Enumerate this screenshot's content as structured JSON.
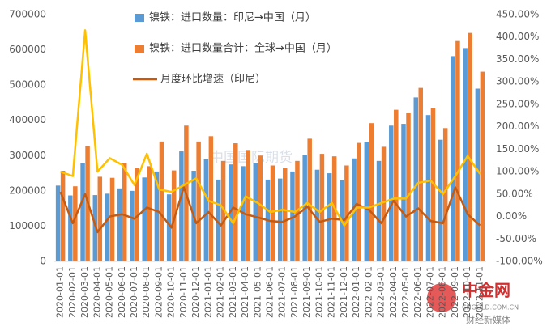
{
  "chart_data": {
    "type": "bar-line",
    "categories": [
      "2020-01-01",
      "2020-02-01",
      "2020-03-01",
      "2020-04-01",
      "2020-05-01",
      "2020-06-01",
      "2020-07-01",
      "2020-08-01",
      "2020-09-01",
      "2020-10-01",
      "2020-11-01",
      "2020-12-01",
      "2021-01-01",
      "2021-02-01",
      "2021-03-01",
      "2021-04-01",
      "2021-05-01",
      "2021-06-01",
      "2021-07-01",
      "2021-08-01",
      "2021-09-01",
      "2021-10-01",
      "2021-11-01",
      "2021-12-01",
      "2022-01-01",
      "2022-02-01",
      "2022-03-01",
      "2022-04-01",
      "2022-05-01",
      "2022-06-01",
      "2022-07-01",
      "2022-08-01",
      "2022-09-01",
      "2022-10-01",
      "2022-11-01"
    ],
    "series": [
      {
        "name": "镍铁：进口数量：印尼→中国（月）",
        "type": "bar",
        "color": "#5b9bd5",
        "values": [
          215000,
          187000,
          280000,
          188000,
          192000,
          207000,
          200000,
          238000,
          255000,
          190000,
          312000,
          257000,
          290000,
          232000,
          275000,
          270000,
          280000,
          232000,
          235000,
          255000,
          302000,
          260000,
          250000,
          230000,
          292000,
          338000,
          285000,
          385000,
          390000,
          465000,
          415000,
          345000,
          582000,
          605000,
          490000
        ]
      },
      {
        "name": "镍铁：进口数量合计：全球→中国（月）",
        "type": "bar",
        "color": "#ed7d31",
        "values": [
          257000,
          213000,
          327000,
          240000,
          237000,
          280000,
          265000,
          270000,
          340000,
          258000,
          385000,
          340000,
          355000,
          285000,
          335000,
          316000,
          300000,
          272000,
          265000,
          285000,
          348000,
          305000,
          298000,
          272000,
          336000,
          392000,
          325000,
          430000,
          420000,
          492000,
          435000,
          378000,
          625000,
          648000,
          538000
        ]
      },
      {
        "name": "月度环比增速（印尼）",
        "type": "line",
        "axis": "y2",
        "color": "#c55a11",
        "values": [
          55,
          -15,
          50,
          -35,
          0,
          5,
          -5,
          20,
          10,
          -25,
          65,
          -15,
          10,
          -20,
          20,
          5,
          -2,
          -10,
          -12,
          0,
          22,
          -12,
          -5,
          -8,
          28,
          15,
          -15,
          35,
          0,
          18,
          -10,
          -15,
          65,
          5,
          -20
        ]
      },
      {
        "type": "line",
        "axis": "y2",
        "color": "#ffc000",
        "values": [
          100,
          90,
          415,
          100,
          130,
          115,
          70,
          140,
          60,
          55,
          70,
          85,
          35,
          25,
          -15,
          45,
          30,
          10,
          15,
          10,
          30,
          10,
          30,
          -20,
          20,
          20,
          30,
          40,
          40,
          75,
          80,
          50,
          90,
          135,
          95
        ]
      }
    ],
    "ylim": [
      0,
      700000
    ],
    "yticks": [
      0,
      100000,
      200000,
      300000,
      400000,
      500000,
      600000,
      700000
    ],
    "y2lim": [
      -100,
      450
    ],
    "y2ticks": [
      {
        "value": -100,
        "label": "-100.00%"
      },
      {
        "value": -50,
        "label": "-50.00%"
      },
      {
        "value": 0,
        "label": "0.00%"
      },
      {
        "value": 50,
        "label": "50.00%"
      },
      {
        "value": 100,
        "label": "100.00%"
      },
      {
        "value": 150,
        "label": "150.00%"
      },
      {
        "value": 200,
        "label": "200.00%"
      },
      {
        "value": 250,
        "label": "250.00%"
      },
      {
        "value": 300,
        "label": "300.00%"
      },
      {
        "value": 350,
        "label": "350.00%"
      },
      {
        "value": 400,
        "label": "400.00%"
      },
      {
        "value": 450,
        "label": "450.00%"
      }
    ],
    "grid": false,
    "watermark": "中国国际期货",
    "logo": [
      "中金网",
      "CNGOLD.COM.CN",
      "财经新媒体"
    ]
  }
}
